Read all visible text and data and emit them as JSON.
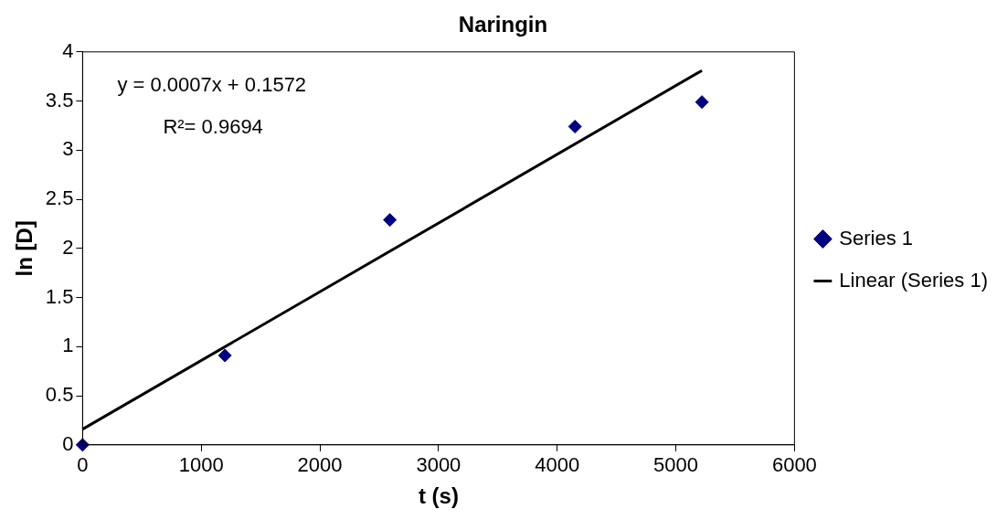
{
  "chart_data": {
    "type": "scatter",
    "title": "Naringin",
    "xlabel": "t (s)",
    "ylabel": "ln [D]",
    "annotations": [
      "y = 0.0007x + 0.1572",
      "R²= 0.9694"
    ],
    "series": [
      {
        "name": "Series 1",
        "color": "#000080",
        "marker": "diamond",
        "x": [
          0,
          1200,
          2590,
          4150,
          5220
        ],
        "values": [
          0,
          0.91,
          2.29,
          3.24,
          3.49
        ]
      },
      {
        "name": "Linear (Series 1)",
        "type": "line",
        "color": "#000000",
        "marker": "none",
        "x": [
          0,
          5220
        ],
        "values": [
          0.16,
          3.81
        ]
      }
    ],
    "xlim": [
      0,
      6000
    ],
    "xticks": [
      0,
      1000,
      2000,
      3000,
      4000,
      5000,
      6000
    ],
    "ylim": [
      0,
      4
    ],
    "yticks": [
      0,
      0.5,
      1,
      1.5,
      2,
      2.5,
      3,
      3.5,
      4
    ],
    "legend": "right"
  }
}
